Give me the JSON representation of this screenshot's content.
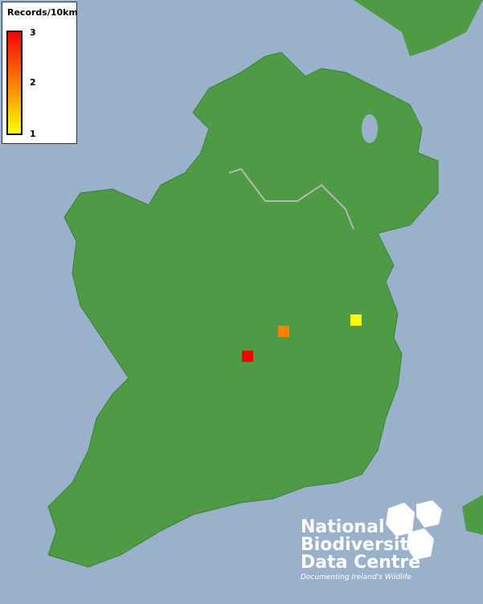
{
  "legend": {
    "title": "Records/10km",
    "max": "3",
    "mid": "2",
    "min": "1",
    "colors": [
      "#ff0000",
      "#ff8000",
      "#ffff00"
    ]
  },
  "records": [
    {
      "value": 3,
      "color": "#ff0000"
    },
    {
      "value": 2,
      "color": "#ff8000"
    },
    {
      "value": 1,
      "color": "#ffff00"
    }
  ],
  "logo": {
    "line1": "National",
    "line2": "Biodiversity",
    "line3": "Data Centre",
    "tagline": "Documenting Ireland's Wildlife"
  }
}
